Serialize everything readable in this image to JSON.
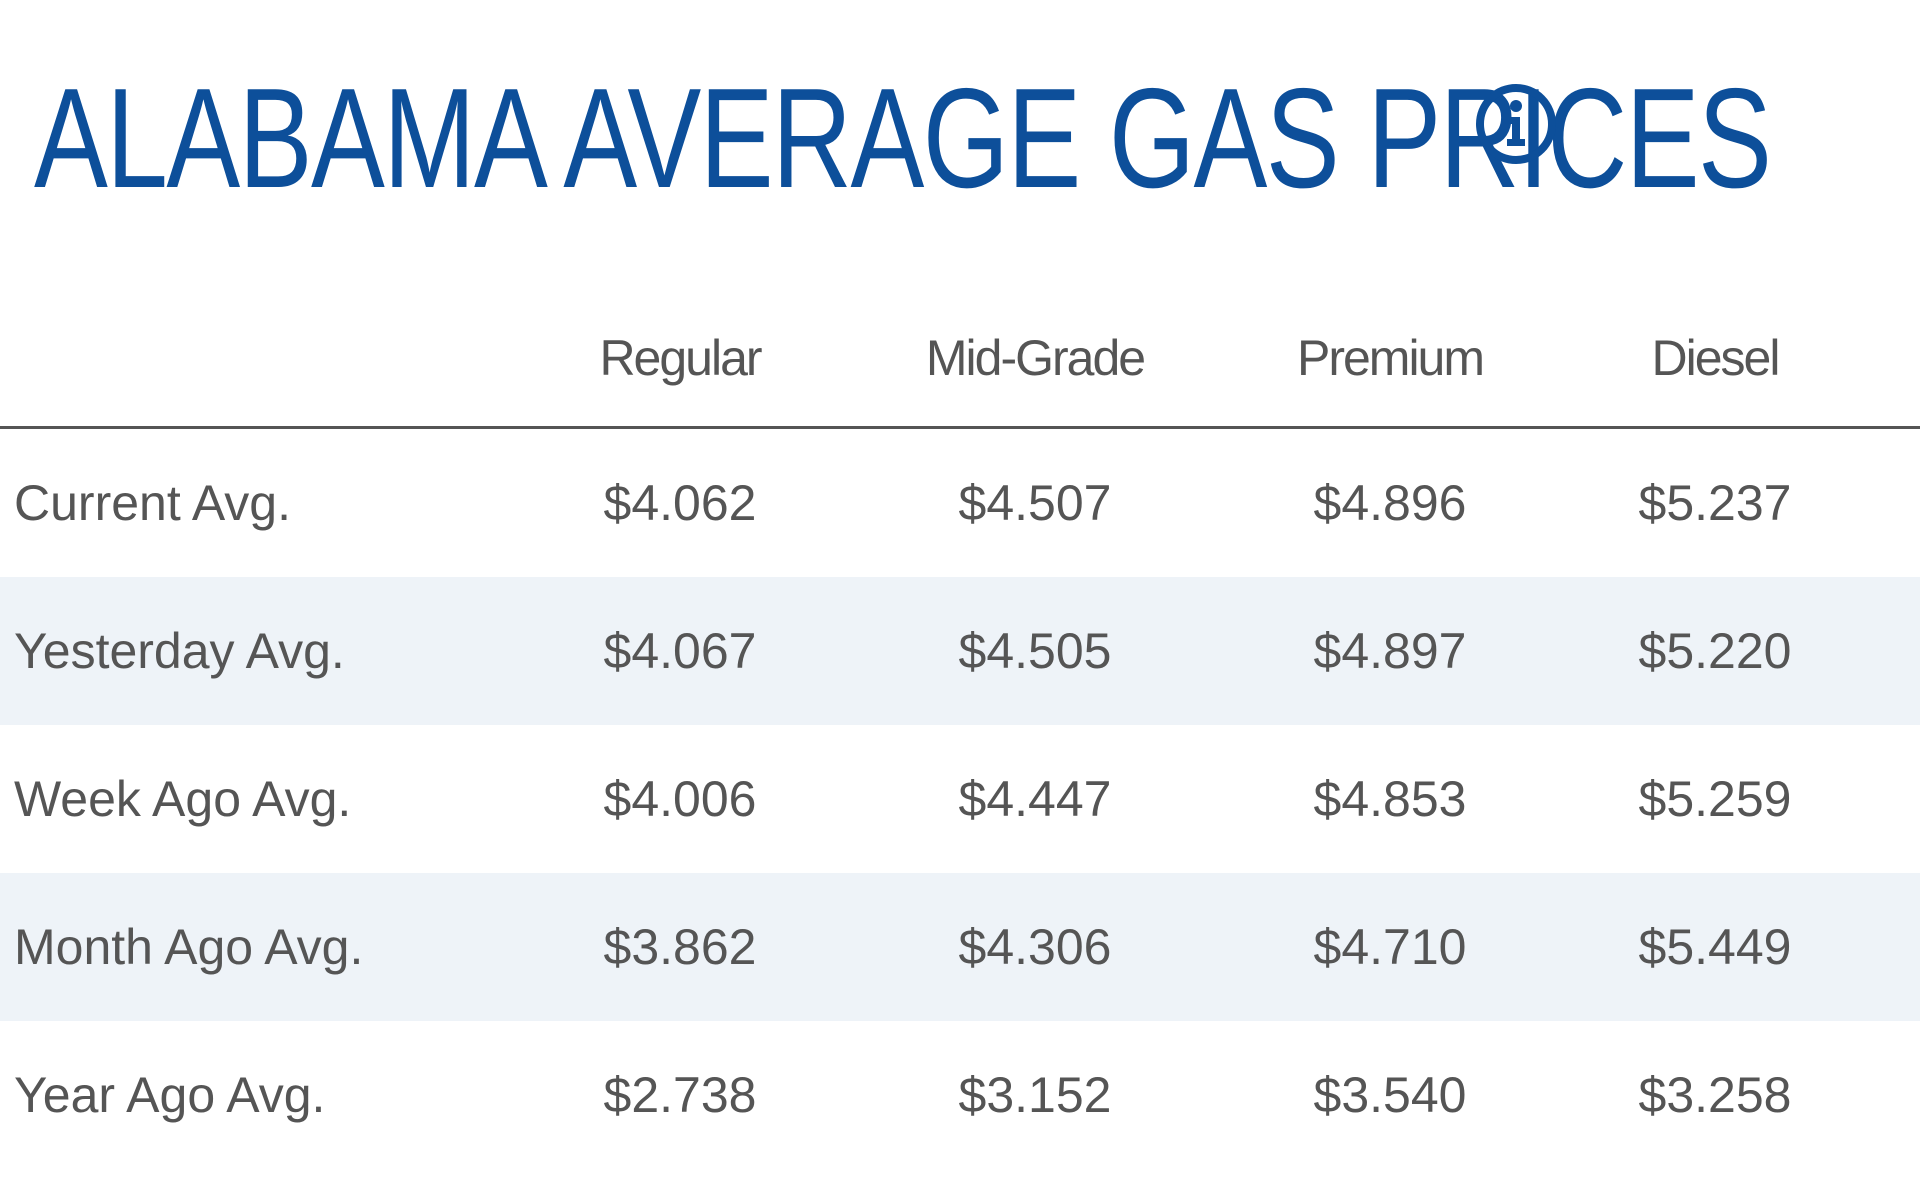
{
  "header": {
    "title": "ALABAMA AVERAGE GAS PRICES",
    "info_icon": "info-circle-icon",
    "title_color": "#0d4f9a"
  },
  "table": {
    "columns": [
      "",
      "Regular",
      "Mid-Grade",
      "Premium",
      "Diesel"
    ],
    "rows": [
      {
        "label": "Current Avg.",
        "regular": "$4.062",
        "mid_grade": "$4.507",
        "premium": "$4.896",
        "diesel": "$5.237"
      },
      {
        "label": "Yesterday Avg.",
        "regular": "$4.067",
        "mid_grade": "$4.505",
        "premium": "$4.897",
        "diesel": "$5.220"
      },
      {
        "label": "Week Ago Avg.",
        "regular": "$4.006",
        "mid_grade": "$4.447",
        "premium": "$4.853",
        "diesel": "$5.259"
      },
      {
        "label": "Month Ago Avg.",
        "regular": "$3.862",
        "mid_grade": "$4.306",
        "premium": "$4.710",
        "diesel": "$5.449"
      },
      {
        "label": "Year Ago Avg.",
        "regular": "$2.738",
        "mid_grade": "$3.152",
        "premium": "$3.540",
        "diesel": "$3.258"
      }
    ],
    "stripe_color": "#eef3f8",
    "text_color": "#555555"
  }
}
